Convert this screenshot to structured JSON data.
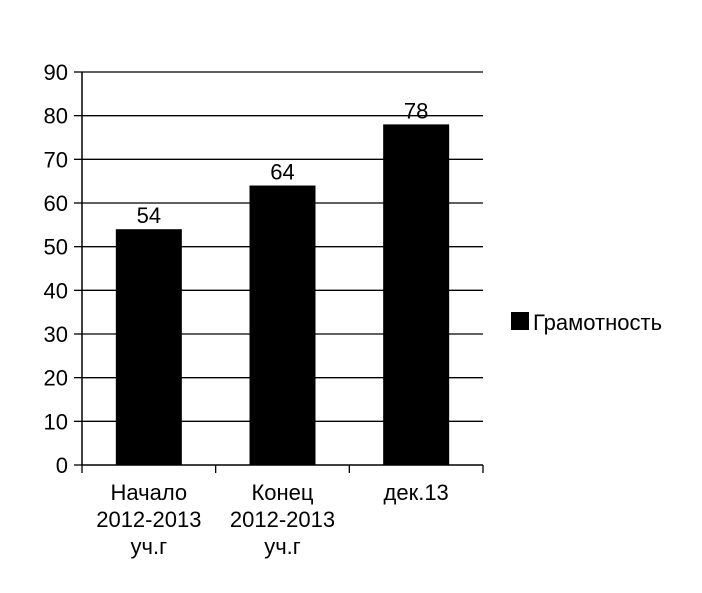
{
  "chart_data": {
    "type": "bar",
    "categories": [
      [
        "Начало",
        "2012-2013",
        "уч.г"
      ],
      [
        "Конец",
        "2012-2013",
        "уч.г"
      ],
      [
        "дек.13"
      ]
    ],
    "series": [
      {
        "name": "Грамотность",
        "values": [
          54,
          64,
          78
        ],
        "color": "#000000"
      }
    ],
    "data_labels": [
      "54",
      "64",
      "78"
    ],
    "title": "",
    "xlabel": "",
    "ylabel": "",
    "ylim": [
      0,
      90
    ],
    "yticks": [
      0,
      10,
      20,
      30,
      40,
      50,
      60,
      70,
      80,
      90
    ],
    "grid": "horizontal",
    "legend_position": "right"
  }
}
